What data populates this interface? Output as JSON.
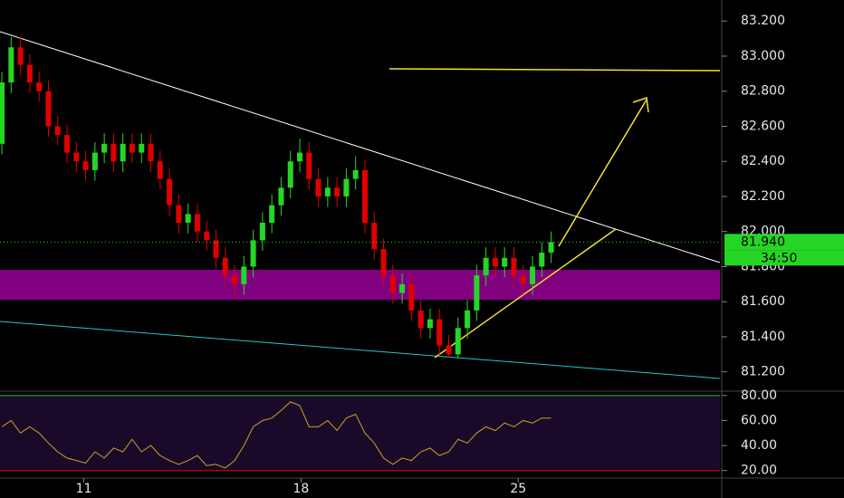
{
  "chart_data": {
    "type": "candlestick",
    "x": [
      8.36,
      8.66,
      8.96,
      9.26,
      9.56,
      9.86,
      10.16,
      10.46,
      10.76,
      11.06,
      11.36,
      11.66,
      11.96,
      12.26,
      12.56,
      12.86,
      13.16,
      13.46,
      13.76,
      14.06,
      14.36,
      14.66,
      14.96,
      15.26,
      15.56,
      15.86,
      16.16,
      16.46,
      16.76,
      17.06,
      17.36,
      17.66,
      17.96,
      18.26,
      18.56,
      18.86,
      19.16,
      19.46,
      19.76,
      20.06,
      20.36,
      20.66,
      20.96,
      21.26,
      21.56,
      21.86,
      22.16,
      22.46,
      22.76,
      23.06,
      23.36,
      23.66,
      23.96,
      24.26,
      24.56,
      24.86,
      25.16,
      25.46,
      25.76,
      26.06
    ],
    "ohlc": [
      [
        82.5,
        82.91,
        82.44,
        82.85
      ],
      [
        82.85,
        83.11,
        82.79,
        83.05
      ],
      [
        83.05,
        83.11,
        82.89,
        82.95
      ],
      [
        82.95,
        83.01,
        82.79,
        82.85
      ],
      [
        82.85,
        82.91,
        82.74,
        82.8
      ],
      [
        82.8,
        82.86,
        82.54,
        82.6
      ],
      [
        82.6,
        82.66,
        82.49,
        82.55
      ],
      [
        82.55,
        82.61,
        82.39,
        82.45
      ],
      [
        82.45,
        82.51,
        82.34,
        82.4
      ],
      [
        82.4,
        82.46,
        82.29,
        82.35
      ],
      [
        82.35,
        82.51,
        82.29,
        82.45
      ],
      [
        82.45,
        82.56,
        82.39,
        82.5
      ],
      [
        82.5,
        82.56,
        82.34,
        82.4
      ],
      [
        82.4,
        82.56,
        82.34,
        82.5
      ],
      [
        82.5,
        82.56,
        82.39,
        82.45
      ],
      [
        82.45,
        82.56,
        82.39,
        82.5
      ],
      [
        82.5,
        82.56,
        82.34,
        82.4
      ],
      [
        82.4,
        82.46,
        82.24,
        82.3
      ],
      [
        82.3,
        82.36,
        82.09,
        82.15
      ],
      [
        82.15,
        82.21,
        81.99,
        82.05
      ],
      [
        82.05,
        82.16,
        81.99,
        82.1
      ],
      [
        82.1,
        82.16,
        81.94,
        82.0
      ],
      [
        82.0,
        82.06,
        81.89,
        81.95
      ],
      [
        81.95,
        82.01,
        81.79,
        81.85
      ],
      [
        81.85,
        81.91,
        81.69,
        81.75
      ],
      [
        81.75,
        81.81,
        81.62,
        81.7
      ],
      [
        81.7,
        81.86,
        81.64,
        81.8
      ],
      [
        81.8,
        82.01,
        81.74,
        81.95
      ],
      [
        81.95,
        82.11,
        81.89,
        82.05
      ],
      [
        82.05,
        82.21,
        81.99,
        82.15
      ],
      [
        82.15,
        82.31,
        82.09,
        82.25
      ],
      [
        82.25,
        82.46,
        82.19,
        82.4
      ],
      [
        82.4,
        82.53,
        82.34,
        82.45
      ],
      [
        82.45,
        82.51,
        82.24,
        82.3
      ],
      [
        82.3,
        82.36,
        82.14,
        82.2
      ],
      [
        82.2,
        82.31,
        82.14,
        82.25
      ],
      [
        82.25,
        82.31,
        82.14,
        82.2
      ],
      [
        82.2,
        82.36,
        82.14,
        82.3
      ],
      [
        82.3,
        82.43,
        82.24,
        82.35
      ],
      [
        82.35,
        82.41,
        81.99,
        82.05
      ],
      [
        82.05,
        82.11,
        81.84,
        81.9
      ],
      [
        81.9,
        81.96,
        81.69,
        81.75
      ],
      [
        81.75,
        81.81,
        81.59,
        81.65
      ],
      [
        81.65,
        81.76,
        81.59,
        81.7
      ],
      [
        81.7,
        81.76,
        81.49,
        81.55
      ],
      [
        81.55,
        81.61,
        81.39,
        81.45
      ],
      [
        81.45,
        81.56,
        81.39,
        81.5
      ],
      [
        81.5,
        81.56,
        81.29,
        81.35
      ],
      [
        81.35,
        81.41,
        81.28,
        81.3
      ],
      [
        81.3,
        81.51,
        81.28,
        81.45
      ],
      [
        81.45,
        81.61,
        81.39,
        81.55
      ],
      [
        81.55,
        81.81,
        81.49,
        81.75
      ],
      [
        81.75,
        81.91,
        81.69,
        81.85
      ],
      [
        81.85,
        81.91,
        81.74,
        81.8
      ],
      [
        81.8,
        81.91,
        81.74,
        81.85
      ],
      [
        81.85,
        81.91,
        81.69,
        81.75
      ],
      [
        81.75,
        81.81,
        81.64,
        81.7
      ],
      [
        81.7,
        81.86,
        81.64,
        81.8
      ],
      [
        81.8,
        81.94,
        81.74,
        81.88
      ],
      [
        81.88,
        82.0,
        81.82,
        81.94
      ]
    ],
    "up_color": "#26d626",
    "down_color": "#e00000",
    "xlim": [
      8.3,
      31.5
    ],
    "xticks": [
      11,
      18,
      25
    ],
    "ylim": [
      81.09,
      83.32
    ],
    "yticks": [
      {
        "value": 81.2,
        "label": "81.200"
      },
      {
        "value": 81.4,
        "label": "81.400"
      },
      {
        "value": 81.6,
        "label": "81.600"
      },
      {
        "value": 81.8,
        "label": "81.800"
      },
      {
        "value": 82.0,
        "label": "82.000"
      },
      {
        "value": 82.2,
        "label": "82.200"
      },
      {
        "value": 82.4,
        "label": "82.400"
      },
      {
        "value": 82.6,
        "label": "82.600"
      },
      {
        "value": 82.8,
        "label": "82.800"
      },
      {
        "value": 83.0,
        "label": "83.000"
      },
      {
        "value": 83.2,
        "label": "83.200"
      }
    ],
    "last_price": {
      "value": 81.94,
      "label": "81.940"
    },
    "countdown": "34:50",
    "rsi": {
      "type": "line",
      "color": "#c9a227",
      "values": [
        55,
        60,
        50,
        55,
        50,
        42,
        35,
        30,
        28,
        26,
        35,
        30,
        38,
        35,
        45,
        35,
        40,
        32,
        28,
        25,
        28,
        32,
        24,
        25,
        22,
        28,
        40,
        55,
        60,
        62,
        68,
        75,
        72,
        55,
        55,
        60,
        52,
        62,
        65,
        50,
        42,
        30,
        25,
        30,
        28,
        35,
        38,
        32,
        35,
        45,
        42,
        50,
        55,
        52,
        58,
        55,
        60,
        58,
        62,
        62
      ],
      "ylim": [
        14,
        83.5
      ],
      "yticks": [
        {
          "value": 20,
          "label": "20.00"
        },
        {
          "value": 40,
          "label": "40.00"
        },
        {
          "value": 60,
          "label": "60.00"
        },
        {
          "value": 80,
          "label": "80.00"
        }
      ]
    }
  }
}
